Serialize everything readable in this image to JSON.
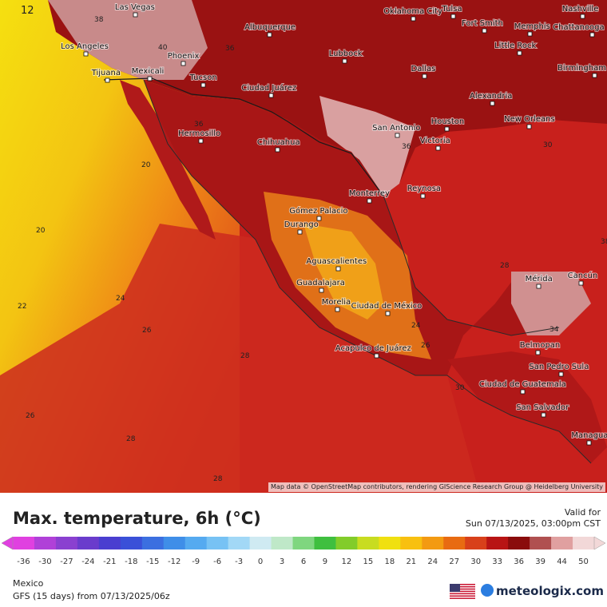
{
  "header": {
    "title": "Max. temperature, 6h (°C)",
    "valid_label": "Valid for",
    "valid_time": "Sun 07/13/2025, 03:00pm CST"
  },
  "map": {
    "frame_number": "12",
    "attribution": "Map data © OpenStreetMap contributors, rendering GIScience Research Group @ Heidelberg University",
    "cities": [
      "Las Vegas",
      "Oklahoma City",
      "Tulsa",
      "Nashville",
      "Albuquerque",
      "Fort Smith",
      "Memphis",
      "Chattanooga",
      "Los Angeles",
      "Phoenix",
      "Lubbock",
      "Little Rock",
      "Birmingham",
      "Tijuana",
      "Mexicali",
      "Tucson",
      "Dallas",
      "Ciudad Juárez",
      "Alexandria",
      "Hermosillo",
      "San Antonio",
      "Houston",
      "New Orleans",
      "Chihuahua",
      "Victoria",
      "Monterrey",
      "Reynosa",
      "Gómez Palacio",
      "Durango",
      "Aguascalientes",
      "Mérida",
      "Cancún",
      "Guadalajara",
      "Morelia",
      "Ciudad de México",
      "Acapulco de Juárez",
      "Belmopan",
      "San Pedro Sula",
      "Ciudad de Guatemala",
      "San Salvador",
      "Managua"
    ],
    "isotherm_labels": [
      "38",
      "40",
      "36",
      "36",
      "20",
      "20",
      "22",
      "24",
      "26",
      "28",
      "26",
      "28",
      "28",
      "34",
      "36",
      "30",
      "28",
      "26",
      "24",
      "30",
      "38"
    ]
  },
  "legend": {
    "ticks": [
      "-36",
      "-30",
      "-27",
      "-24",
      "-21",
      "-18",
      "-15",
      "-12",
      "-9",
      "-6",
      "-3",
      "0",
      "3",
      "6",
      "9",
      "12",
      "15",
      "18",
      "21",
      "24",
      "27",
      "30",
      "33",
      "36",
      "39",
      "44",
      "50"
    ],
    "colors": [
      "#e040e0",
      "#b040d8",
      "#8a40d0",
      "#6a3ccc",
      "#4a3ed0",
      "#3a50d8",
      "#3b6fe0",
      "#3f8ee8",
      "#55aaf0",
      "#77c2f4",
      "#a2d8f6",
      "#cfeaf2",
      "#bfe8c8",
      "#7fd67f",
      "#3fbf3f",
      "#82cc2a",
      "#c8dc20",
      "#f0e010",
      "#f8c010",
      "#f39a12",
      "#e86b12",
      "#d8401a",
      "#b81414",
      "#8a0c0c",
      "#b05050",
      "#e0a0a0",
      "#f2d8d8"
    ],
    "region": "Mexico",
    "model": "GFS (15 days) from  07/13/2025/06z",
    "brand": "meteologix.com"
  }
}
